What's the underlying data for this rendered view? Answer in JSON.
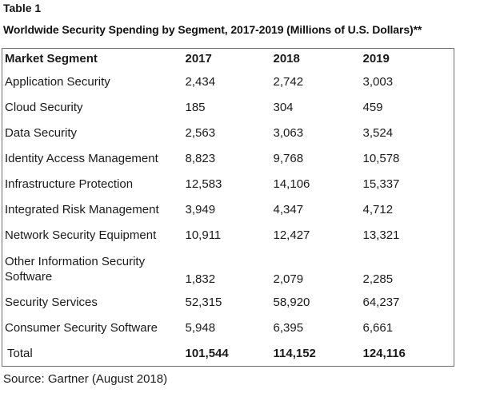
{
  "table_label": "Table 1",
  "table_title": "Worldwide Security Spending by Segment, 2017-2019 (Millions of U.S. Dollars)**",
  "columns": [
    "Market Segment",
    "2017",
    "2018",
    "2019"
  ],
  "rows": [
    {
      "segment": "Application Security",
      "y2017": "2,434",
      "y2018": "2,742",
      "y2019": "3,003"
    },
    {
      "segment": "Cloud Security",
      "y2017": "185",
      "y2018": "304",
      "y2019": "459"
    },
    {
      "segment": "Data Security",
      "y2017": "2,563",
      "y2018": "3,063",
      "y2019": "3,524"
    },
    {
      "segment": "Identity Access Management",
      "y2017": "8,823",
      "y2018": "9,768",
      "y2019": "10,578"
    },
    {
      "segment": "Infrastructure Protection",
      "y2017": "12,583",
      "y2018": "14,106",
      "y2019": "15,337"
    },
    {
      "segment": "Integrated Risk Management",
      "y2017": "3,949",
      "y2018": "4,347",
      "y2019": "4,712"
    },
    {
      "segment": "Network Security Equipment",
      "y2017": "10,911",
      "y2018": "12,427",
      "y2019": "13,321"
    },
    {
      "segment": "Other Information Security Software",
      "y2017": "1,832",
      "y2018": "2,079",
      "y2019": "2,285"
    },
    {
      "segment": "Security Services",
      "y2017": "52,315",
      "y2018": "58,920",
      "y2019": "64,237"
    },
    {
      "segment": "Consumer Security Software",
      "y2017": "5,948",
      "y2018": "6,395",
      "y2019": "6,661"
    }
  ],
  "total": {
    "segment": "Total",
    "y2017": "101,544",
    "y2018": "114,152",
    "y2019": "124,116"
  },
  "source": "Source: Gartner (August 2018)"
}
